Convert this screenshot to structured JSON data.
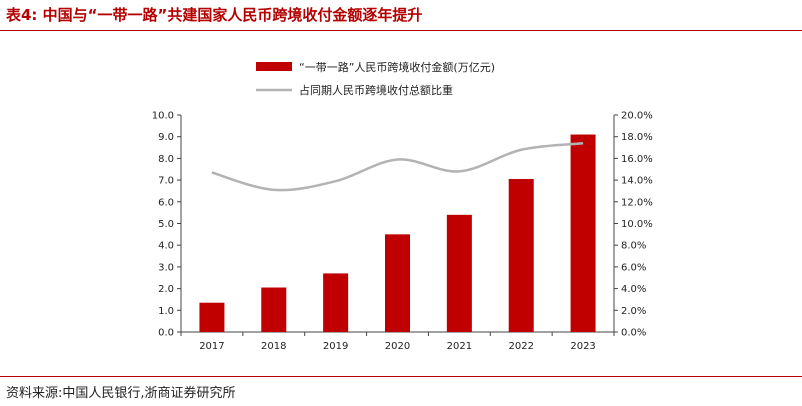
{
  "title": "表4:  中国与“一带一路”共建国家人民币跨境收付金额逐年提升",
  "source": "资料来源:中国人民银行,浙商证券研究所",
  "chart_data": {
    "type": "bar",
    "categories": [
      "2017",
      "2018",
      "2019",
      "2020",
      "2021",
      "2022",
      "2023"
    ],
    "series": [
      {
        "name": "“一带一路”人民币跨境收付金额(万亿元)",
        "type": "bar",
        "axis": "left",
        "values": [
          1.35,
          2.05,
          2.7,
          4.5,
          5.4,
          7.05,
          9.1
        ],
        "color": "#c00000"
      },
      {
        "name": "占同期人民币跨境收付总额比重",
        "type": "line",
        "axis": "right",
        "values": [
          14.7,
          13.1,
          13.9,
          15.9,
          14.8,
          16.8,
          17.4
        ],
        "color": "#b3b3b3"
      }
    ],
    "ylim": [
      0,
      10
    ],
    "yticks": [
      "0.0",
      "1.0",
      "2.0",
      "3.0",
      "4.0",
      "5.0",
      "6.0",
      "7.0",
      "8.0",
      "9.0",
      "10.0"
    ],
    "y2lim": [
      0,
      20
    ],
    "y2ticks": [
      "0.0%",
      "2.0%",
      "4.0%",
      "6.0%",
      "8.0%",
      "10.0%",
      "12.0%",
      "14.0%",
      "16.0%",
      "18.0%",
      "20.0%"
    ],
    "legend_position": "top",
    "grid": false
  }
}
